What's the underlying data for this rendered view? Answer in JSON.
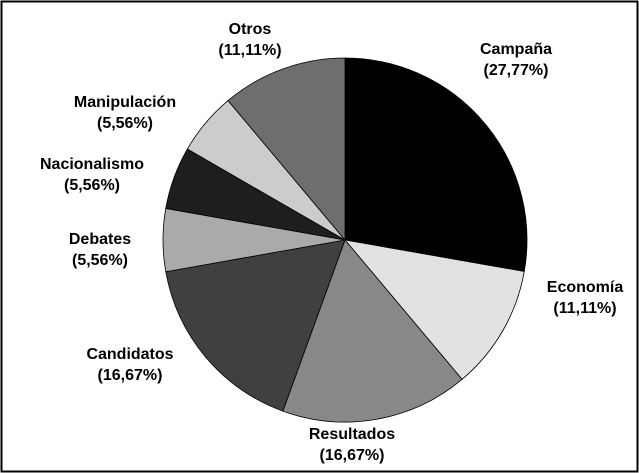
{
  "chart_data": {
    "type": "pie",
    "categories": [
      "Campaña",
      "Economía",
      "Resultados",
      "Candidatos",
      "Debates",
      "Nacionalismo",
      "Manipulación",
      "Otros"
    ],
    "values": [
      27.77,
      11.11,
      16.67,
      16.67,
      5.56,
      5.56,
      5.56,
      11.11
    ],
    "value_labels": [
      "(27,77%)",
      "(11,11%)",
      "(16,67%)",
      "(16,67%)",
      "(5,56%)",
      "(5,56%)",
      "(5,56%)",
      "(11,11%)"
    ],
    "colors": [
      "#000000",
      "#e2e2e2",
      "#888888",
      "#404040",
      "#aaaaaa",
      "#1e1e1e",
      "#cccccc",
      "#6e6e6e"
    ]
  }
}
